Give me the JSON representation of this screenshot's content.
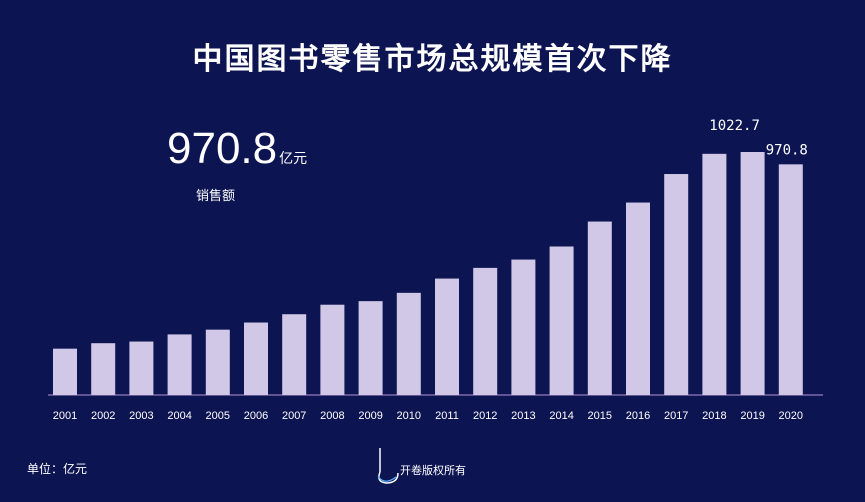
{
  "title": "中国图书零售市场总规模首次下降",
  "kpi": {
    "value": "970.8",
    "unit": "亿元",
    "label": "销售额"
  },
  "unit_note": "单位：亿元",
  "footer": {
    "text": "开卷版权所有"
  },
  "colors": {
    "background": "#0d1452",
    "bar": "#d0c8e6",
    "axis": "#7f6aa8",
    "text": "#ffffff"
  },
  "chart_data": {
    "type": "bar",
    "title": "中国图书零售市场总规模首次下降",
    "categories": [
      "2001",
      "2002",
      "2003",
      "2004",
      "2005",
      "2006",
      "2007",
      "2008",
      "2009",
      "2010",
      "2011",
      "2012",
      "2013",
      "2014",
      "2015",
      "2016",
      "2017",
      "2018",
      "2019",
      "2020"
    ],
    "values": [
      195,
      218,
      225,
      255,
      275,
      305,
      340,
      380,
      395,
      430,
      490,
      535,
      570,
      625,
      730,
      810,
      930,
      1015,
      1022.7,
      970.8
    ],
    "data_labels": [
      {
        "index": 18,
        "text": "1022.7"
      },
      {
        "index": 19,
        "text": "970.8"
      }
    ],
    "xlabel": "",
    "ylabel": "",
    "ylim": [
      0,
      1022.7
    ],
    "grid": false
  }
}
